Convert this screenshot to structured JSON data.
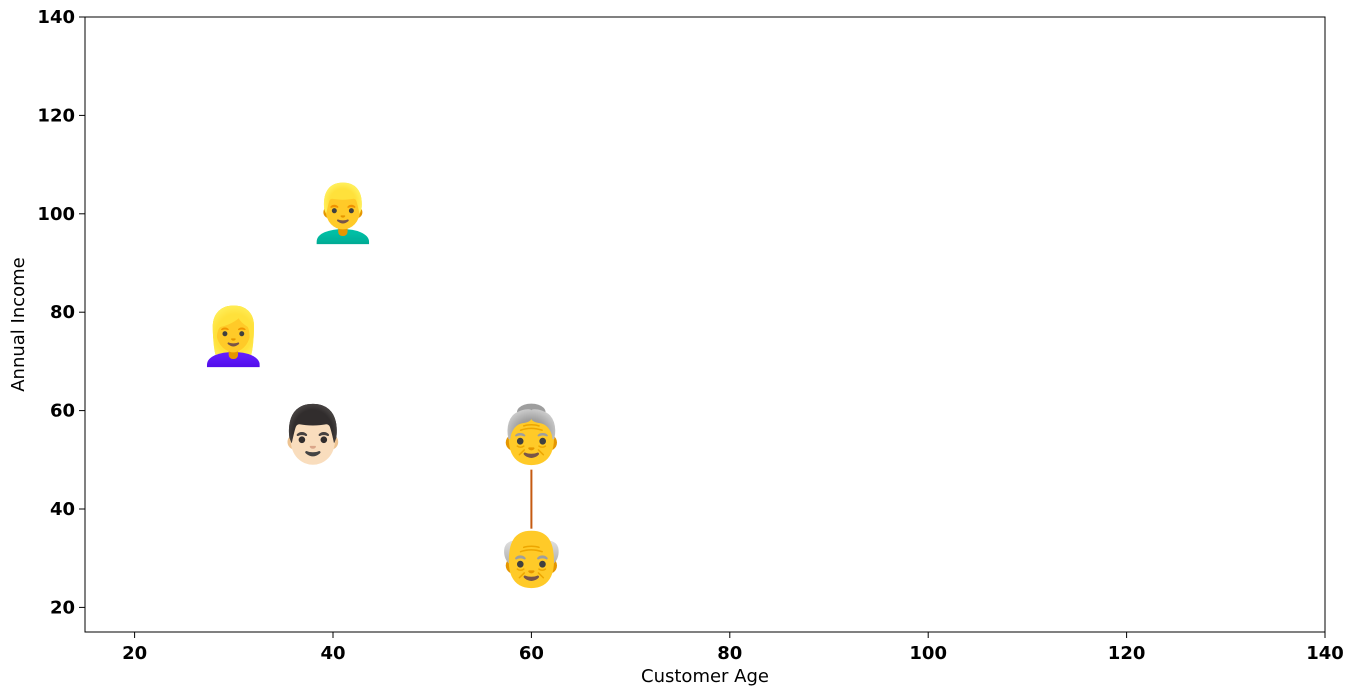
{
  "chart_data": {
    "type": "scatter",
    "title": "",
    "xlabel": "Customer Age",
    "ylabel": "Annual Income",
    "xlim": [
      15,
      140
    ],
    "ylim": [
      15,
      140
    ],
    "xticks": [
      20,
      40,
      60,
      80,
      100,
      120,
      140
    ],
    "yticks": [
      20,
      40,
      60,
      80,
      100,
      120,
      140
    ],
    "grid": false,
    "points": [
      {
        "x": 41,
        "y": 100,
        "icon": "man-blond-icon",
        "emoji": "👱‍♂️"
      },
      {
        "x": 30,
        "y": 75,
        "icon": "woman-ponytail-icon",
        "emoji": "👱‍♀️"
      },
      {
        "x": 38,
        "y": 55,
        "icon": "man-mustache-icon",
        "emoji": "👨🏻"
      },
      {
        "x": 60,
        "y": 55,
        "icon": "old-woman-icon",
        "emoji": "👵"
      },
      {
        "x": 60,
        "y": 30,
        "icon": "old-man-icon",
        "emoji": "👴"
      }
    ],
    "connectors": [
      {
        "from": [
          60,
          48
        ],
        "to": [
          60,
          36
        ],
        "color": "#c55a11"
      }
    ]
  }
}
